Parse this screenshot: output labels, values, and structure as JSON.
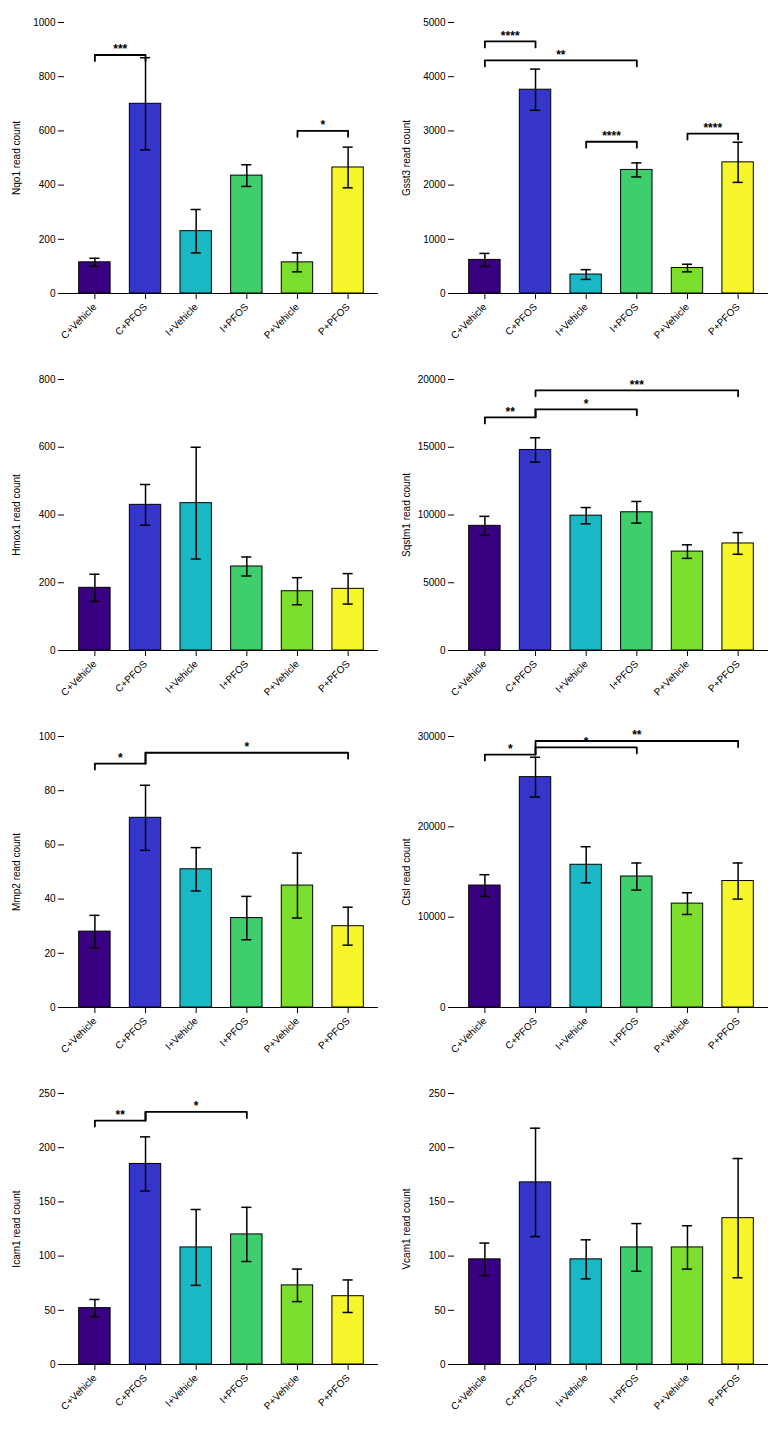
{
  "chart_data": [
    {
      "type": "bar",
      "ylabel": "Nqo1 read count",
      "categories": [
        "C+Vehicle",
        "C+PFOS",
        "I+Vehicle",
        "I+PFOS",
        "P+Vehicle",
        "P+PFOS"
      ],
      "colors": [
        "#3a0082",
        "#3535cc",
        "#1ab8c4",
        "#3ecf6c",
        "#7bde2e",
        "#f5f52a"
      ],
      "values": [
        115,
        700,
        230,
        435,
        115,
        465
      ],
      "errors": [
        15,
        170,
        80,
        40,
        35,
        75
      ],
      "ylim": [
        0,
        1000
      ],
      "yticks": [
        0,
        200,
        400,
        600,
        800,
        1000
      ],
      "grid": false,
      "annotations": [
        {
          "type": "bracket",
          "x1": "C+Vehicle",
          "x2": "C+PFOS",
          "y": 880,
          "label": "***"
        },
        {
          "type": "bracket",
          "x1": "P+Vehicle",
          "x2": "P+PFOS",
          "y": 600,
          "label": "*"
        }
      ]
    },
    {
      "type": "bar",
      "ylabel": "Gsst3 read count",
      "categories": [
        "C+Vehicle",
        "C+PFOS",
        "I+Vehicle",
        "I+PFOS",
        "P+Vehicle",
        "P+PFOS"
      ],
      "colors": [
        "#3a0082",
        "#3535cc",
        "#1ab8c4",
        "#3ecf6c",
        "#7bde2e",
        "#f5f52a"
      ],
      "values": [
        620,
        3760,
        350,
        2280,
        470,
        2420
      ],
      "errors": [
        120,
        380,
        90,
        130,
        70,
        370
      ],
      "ylim": [
        0,
        5000
      ],
      "yticks": [
        0,
        1000,
        2000,
        3000,
        4000,
        5000
      ],
      "grid": false,
      "annotations": [
        {
          "type": "bracket",
          "x1": "C+Vehicle",
          "x2": "C+PFOS",
          "y": 4650,
          "label": "****"
        },
        {
          "type": "bracket",
          "x1": "C+Vehicle",
          "x2": "I+PFOS",
          "y": 4300,
          "label": "**"
        },
        {
          "type": "bracket",
          "x1": "I+Vehicle",
          "x2": "I+PFOS",
          "y": 2800,
          "label": "****"
        },
        {
          "type": "bracket",
          "x1": "P+Vehicle",
          "x2": "P+PFOS",
          "y": 2950,
          "label": "****"
        }
      ]
    },
    {
      "type": "bar",
      "ylabel": "Hmox1 read count",
      "categories": [
        "C+Vehicle",
        "C+PFOS",
        "I+Vehicle",
        "I+PFOS",
        "P+Vehicle",
        "P+PFOS"
      ],
      "colors": [
        "#3a0082",
        "#3535cc",
        "#1ab8c4",
        "#3ecf6c",
        "#7bde2e",
        "#f5f52a"
      ],
      "values": [
        185,
        430,
        435,
        248,
        175,
        182
      ],
      "errors": [
        40,
        60,
        165,
        28,
        40,
        45
      ],
      "ylim": [
        0,
        800
      ],
      "yticks": [
        0,
        200,
        400,
        600,
        800
      ],
      "grid": false,
      "annotations": []
    },
    {
      "type": "bar",
      "ylabel": "Sqstm1 read count",
      "categories": [
        "C+Vehicle",
        "C+PFOS",
        "I+Vehicle",
        "I+PFOS",
        "P+Vehicle",
        "P+PFOS"
      ],
      "colors": [
        "#3a0082",
        "#3535cc",
        "#1ab8c4",
        "#3ecf6c",
        "#7bde2e",
        "#f5f52a"
      ],
      "values": [
        9200,
        14800,
        9950,
        10200,
        7300,
        7900
      ],
      "errors": [
        700,
        900,
        600,
        800,
        500,
        800
      ],
      "ylim": [
        0,
        20000
      ],
      "yticks": [
        0,
        5000,
        10000,
        15000,
        20000
      ],
      "grid": false,
      "annotations": [
        {
          "type": "joined_bracket",
          "x1": "C+Vehicle",
          "xmid": "C+PFOS",
          "x2": "I+PFOS",
          "y_low": 17200,
          "y_high": 17800,
          "label1": "**",
          "label2": "*"
        },
        {
          "type": "bracket",
          "x1": "C+PFOS",
          "x2": "P+PFOS",
          "y": 19200,
          "label": "***"
        }
      ]
    },
    {
      "type": "bar",
      "ylabel": "Mmp2 read count",
      "categories": [
        "C+Vehicle",
        "C+PFOS",
        "I+Vehicle",
        "I+PFOS",
        "P+Vehicle",
        "P+PFOS"
      ],
      "colors": [
        "#3a0082",
        "#3535cc",
        "#1ab8c4",
        "#3ecf6c",
        "#7bde2e",
        "#f5f52a"
      ],
      "values": [
        28,
        70,
        51,
        33,
        45,
        30
      ],
      "errors": [
        6,
        12,
        8,
        8,
        12,
        7
      ],
      "ylim": [
        0,
        100
      ],
      "yticks": [
        0,
        20,
        40,
        60,
        80,
        100
      ],
      "grid": false,
      "annotations": [
        {
          "type": "joined_bracket",
          "x1": "C+Vehicle",
          "xmid": "C+PFOS",
          "x2": "P+PFOS",
          "y_low": 90,
          "y_high": 94,
          "label1": "*",
          "label2": "*"
        }
      ]
    },
    {
      "type": "bar",
      "ylabel": "Ctsl read count",
      "categories": [
        "C+Vehicle",
        "C+PFOS",
        "I+Vehicle",
        "I+PFOS",
        "P+Vehicle",
        "P+PFOS"
      ],
      "colors": [
        "#3a0082",
        "#3535cc",
        "#1ab8c4",
        "#3ecf6c",
        "#7bde2e",
        "#f5f52a"
      ],
      "values": [
        13500,
        25500,
        15800,
        14500,
        11500,
        14000
      ],
      "errors": [
        1200,
        2200,
        2000,
        1500,
        1200,
        2000
      ],
      "ylim": [
        0,
        30000
      ],
      "yticks": [
        0,
        10000,
        20000,
        30000
      ],
      "grid": false,
      "annotations": [
        {
          "type": "joined_bracket",
          "x1": "C+Vehicle",
          "xmid": "C+PFOS",
          "x2": "I+PFOS",
          "y_low": 28000,
          "y_high": 28800,
          "label1": "*",
          "label2": "*"
        },
        {
          "type": "bracket",
          "x1": "C+PFOS",
          "x2": "P+PFOS",
          "y": 29500,
          "label": "**"
        }
      ]
    },
    {
      "type": "bar",
      "ylabel": "Icam1 read count",
      "categories": [
        "C+Vehicle",
        "C+PFOS",
        "I+Vehicle",
        "I+PFOS",
        "P+Vehicle",
        "P+PFOS"
      ],
      "colors": [
        "#3a0082",
        "#3535cc",
        "#1ab8c4",
        "#3ecf6c",
        "#7bde2e",
        "#f5f52a"
      ],
      "values": [
        52,
        185,
        108,
        120,
        73,
        63
      ],
      "errors": [
        8,
        25,
        35,
        25,
        15,
        15
      ],
      "ylim": [
        0,
        250
      ],
      "yticks": [
        0,
        50,
        100,
        150,
        200,
        250
      ],
      "grid": false,
      "annotations": [
        {
          "type": "joined_bracket",
          "x1": "C+Vehicle",
          "xmid": "C+PFOS",
          "x2": "I+PFOS",
          "y_low": 225,
          "y_high": 233,
          "label1": "**",
          "label2": "*"
        }
      ]
    },
    {
      "type": "bar",
      "ylabel": "Vcam1 read count",
      "categories": [
        "C+Vehicle",
        "C+PFOS",
        "I+Vehicle",
        "I+PFOS",
        "P+Vehicle",
        "P+PFOS"
      ],
      "colors": [
        "#3a0082",
        "#3535cc",
        "#1ab8c4",
        "#3ecf6c",
        "#7bde2e",
        "#f5f52a"
      ],
      "values": [
        97,
        168,
        97,
        108,
        108,
        135
      ],
      "errors": [
        15,
        50,
        18,
        22,
        20,
        55
      ],
      "ylim": [
        0,
        250
      ],
      "yticks": [
        0,
        50,
        100,
        150,
        200,
        250
      ],
      "grid": false,
      "annotations": []
    }
  ]
}
